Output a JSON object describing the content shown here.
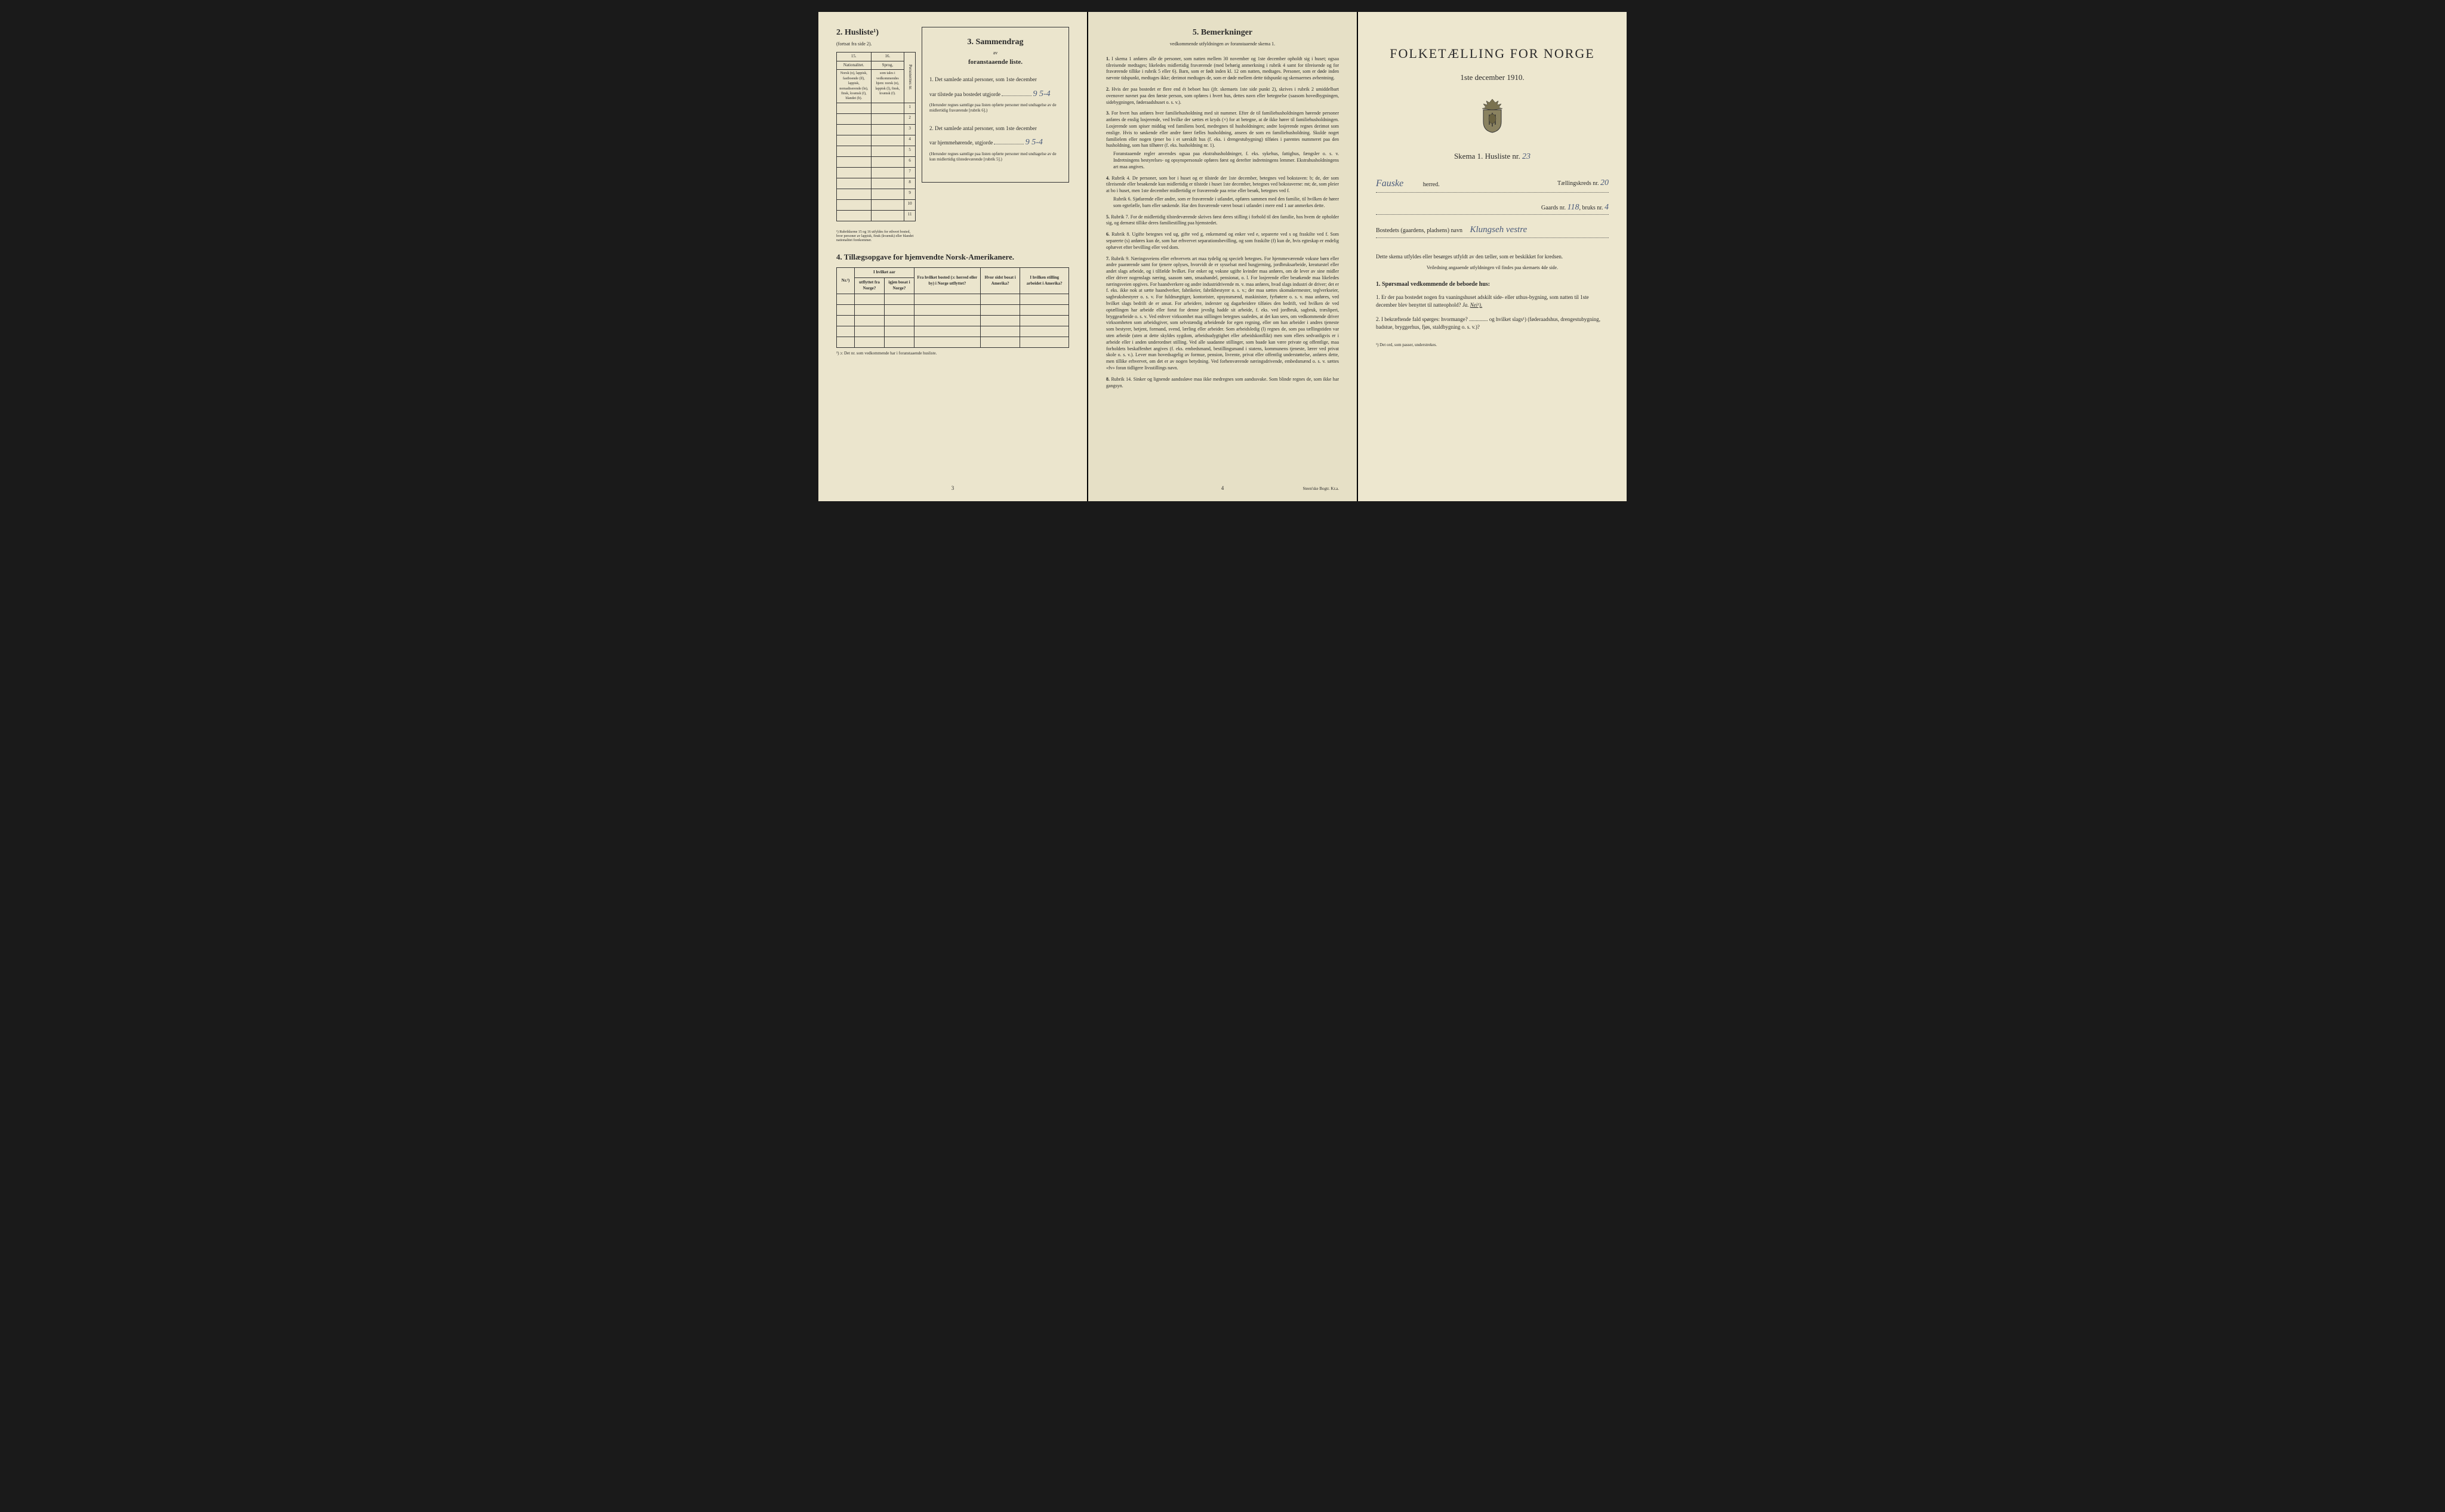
{
  "page3": {
    "husliste_header": "2. Husliste¹)",
    "husliste_sub": "(fortsat fra side 2).",
    "col15": "15.",
    "col16": "16.",
    "nationalitet_header": "Nationalitet.",
    "sprog_header": "Sprog,",
    "nat_text": "Norsk (n), lappisk, fastboende (lf), lappisk, nomadiserende (ln), finsk, kvænsk (f), blandet (b).",
    "sprog_text": "som tales i vedkommendes hjem: norsk (n), lappisk (l), finsk, kvænsk (f).",
    "person_nr": "Personernes nr.",
    "rows": [
      "1",
      "2",
      "3",
      "4",
      "5",
      "6",
      "7",
      "8",
      "9",
      "10",
      "11"
    ],
    "rubrik_note": "¹) Rubrikkerne 15 og 16 utfyldes for ethvert bosted, hvor personer av lappisk, finsk (kvænsk) eller blandet nationalitet forekommer.",
    "sammendrag_title": "3. Sammendrag",
    "sammendrag_av": "av",
    "sammendrag_sub": "foranstaaende liste.",
    "item1_text": "1. Det samlede antal personer, som 1ste december",
    "item1_var": "var tilstede paa bostedet utgjorde",
    "item1_value": "9 5-4",
    "item1_note": "(Herunder regnes samtlige paa listen opførte personer med undtagelse av de midlertidig fraværende [rubrik 6].)",
    "item2_text": "2. Det samlede antal personer, som 1ste december",
    "item2_var": "var hjemmehørende, utgjorde",
    "item2_value": "9 5-4",
    "item2_note": "(Herunder regnes samtlige paa listen opførte personer med undtagelse av de kun midlertidig tilstedeværende [rubrik 5].)",
    "tillaeg_title": "4. Tillægsopgave for hjemvendte Norsk-Amerikanere.",
    "tillaeg_headers": [
      "Nr.²)",
      "I hvilket aar",
      "Fra hvilket bosted (ɔ: herred eller by) i Norge utflyttet?",
      "Hvor sidst bosat i Amerika?",
      "I hvilken stilling arbeidet i Amerika?"
    ],
    "tillaeg_sub1": "utflyttet fra Norge?",
    "tillaeg_sub2": "igjen bosat i Norge?",
    "tillaeg_footnote": "²) ɔ: Det nr. som vedkommende har i foranstaaende husliste.",
    "page_num": "3"
  },
  "page4": {
    "title": "5. Bemerkninger",
    "subtitle": "vedkommende utfyldningen av foranstaaende skema 1.",
    "items": [
      {
        "num": "1.",
        "text": "I skema 1 anføres alle de personer, som natten mellem 30 november og 1ste december opholdt sig i huset; ogsaa tilreisende medtages; likeledes midlertidig fraværende (med behørig anmerkning i rubrik 4 samt for tilreisende og for fraværende tillike i rubrik 5 eller 6). Barn, som er født inden kl. 12 om natten, medtages. Personer, som er døde inden nævnte tidspunkt, medtages ikke; derimot medtages de, som er døde mellem dette tidspunkt og skemaernes avhentning."
      },
      {
        "num": "2.",
        "text": "Hvis der paa bostedet er flere end ét beboet hus (jfr. skemaets 1ste side punkt 2), skrives i rubrik 2 umiddelbart ovenover navnet paa den første person, som opføres i hvert hus, dettes navn eller betegnelse (saasom hovedbygningen, sidebygningen, føderaadshuset o. s. v.)."
      },
      {
        "num": "3.",
        "text": "For hvert hus anføres hver familiehusholdning med sit nummer. Efter de til familiehusholdningen hørende personer anføres de enslig losjerende, ved hvilke der sættes et kryds (×) for at betegne, at de ikke hører til familiehusholdningen. Losjerende som spiser middag ved familiens bord, medregnes til husholdningen; andre losjerende regnes derimot som enslige. Hvis to søskende eller andre fører fælles husholdning, ansees de som en familiehusholdning. Skulde noget familielem eller nogen tjener bo i et særskilt hus (f. eks. i drengestubygning) tilføies i parentes nummeret paa den husholdning, som han tilhører (f. eks. husholdning nr. 1).",
        "sub": "Foranstaaende regler anvendes ogsaa paa ekstrahusholdninger, f. eks. sykehus, fattighus, fængsler o. s. v. Indretningens bestyrelses- og opsynspersonale opføres først og derefter indretningens lemmer. Ekstrahusholdningens art maa angives."
      },
      {
        "num": "4.",
        "text": "Rubrik 4. De personer, som bor i huset og er tilstede der 1ste december, betegnes ved bokstaven: b; de, der som tilreisende eller besøkende kun midlertidig er tilstede i huset 1ste december, betegnes ved bokstaverne: mt; de, som pleier at bo i huset, men 1ste december midlertidig er fraværende paa reise eller besøk, betegnes ved f.",
        "sub": "Rubrik 6. Sjøfarende eller andre, som er fraværende i utlandet, opføres sammen med den familie, til hvilken de hører som egtefælle, barn eller søskende.\nHar den fraværende været bosat i utlandet i mere end 1 aar anmerkes dette."
      },
      {
        "num": "5.",
        "text": "Rubrik 7. For de midlertidig tilstedeværende skrives først deres stilling i forhold til den familie, hos hvem de opholder sig, og dernæst tillike deres familiestilling paa hjemstedet."
      },
      {
        "num": "6.",
        "text": "Rubrik 8. Ugifte betegnes ved ug, gifte ved g, enkemænd og enker ved e, separerte ved s og fraskilte ved f. Som separerte (s) anføres kun de, som har erhvervet separationsbevilling, og som fraskilte (f) kun de, hvis egteskap er endelig ophævet efter bevilling eller ved dom."
      },
      {
        "num": "7.",
        "text": "Rubrik 9. Næringsveiens eller erhvervets art maa tydelig og specielt betegnes.\nFor hjemmeværende voksne børn eller andre paarørende samt for tjenere oplyses, hvorvidt de er sysselsat med husgjerning, jordbruksarbeide, kreaturstel eller andet slags arbeide, og i tilfælde hvilket. For enker og voksne ugifte kvinder maa anføres, om de lever av sine midler eller driver nogenslags næring, saasom søm, smaahandel, pensionat, o. l.\nFor losjerende eller besøkende maa likeledes næringsveien opgives.\nFor haandverkere og andre industridrivende m. v. maa anføres, hvad slags industri de driver; det er f. eks. ikke nok at sætte haandverker, fabrikeier, fabrikbestyrer o. s. v.; der maa sættes skomakermester, teglverkseier, sagbruksbestyrer o. s. v.\nFor fuldmægtiger, kontorister, opsynsmænd, maskinister, fyrbøtere o. s. v. maa anføres, ved hvilket slags bedrift de er ansat.\nFor arbeidere, inderster og dagarbeidere tilføies den bedrift, ved hvilken de ved optællingen har arbeide eller forut for denne jevnlig hadde sit arbeide, f. eks. ved jordbruk, sagbruk, træsliperi, bryggearbeide o. s. v.\nVed enhver virksomhet maa stillingen betegnes saaledes, at det kan sees, om vedkommende driver virksomheten som arbeidsgiver, som selvstændig arbeidende for egen regning, eller om han arbeider i andres tjeneste som bestyrer, betjent, formand, svend, lærling eller arbeider.\nSom arbeidsledig (l) regnes de, som paa tællingstiden var uten arbeide (uten at dette skyldes sygdom, arbeidsudygtighet eller arbeidskonflikt) men som ellers sedvanligvis er i arbeide eller i anden underordnet stilling.\nVed alle saadanne stillinger, som baade kan være private og offentlige, maa forholdets beskaffenhet angives (f. eks. embedsmand, bestillingsmand i statens, kommunens tjeneste, lærer ved privat skole o. s. v.).\nLever man hovedsagelig av formue, pension, livrente, privat eller offentlig understøttelse, anføres dette, men tillike erhvervet, om det er av nogen betydning.\nVed forhenværende næringsdrivende, embedsmænd o. s. v. sættes «fv» foran tidligere livsstillings navn."
      },
      {
        "num": "8.",
        "text": "Rubrik 14. Sinker og lignende aandssløve maa ikke medregnes som aandssvake.\nSom blinde regnes de, som ikke har gangsyn."
      }
    ],
    "page_num": "4",
    "printer": "Steen'ske Bogtr. Kr.a."
  },
  "page1": {
    "main_title": "FOLKETÆLLING FOR NORGE",
    "date": "1ste december 1910.",
    "skema_text": "Skema 1. Husliste nr.",
    "husliste_nr": "23",
    "herred_label": "herred.",
    "herred_value": "Fauske",
    "taellingskreds_label": "Tællingskreds nr.",
    "taellingskreds_value": "20",
    "gaards_label": "Gaards nr.",
    "gaards_value": "118",
    "bruks_label": "bruks nr.",
    "bruks_value": "4",
    "bosted_label": "Bostedets (gaardens, pladsens) navn",
    "bosted_value": "Klungseh vestre",
    "instruction": "Dette skema utfyldes eller besørges utfyldt av den tæller, som er beskikket for kredsen.",
    "instruction_sub": "Veiledning angaaende utfyldningen vil findes paa skemaets 4de side.",
    "q_title": "1. Spørsmaal vedkommende de beboede hus:",
    "q1": "1. Er der paa bostedet nogen fra vaaningshuset adskilt side- eller uthus-bygning, som natten til 1ste december blev benyttet til natteophold?",
    "q1_ja": "Ja.",
    "q1_nei": "Nei¹).",
    "q2": "2. I bekræftende fald spørges: hvormange? .............. og hvilket slags¹) (føderaadshus, drengestubygning, badstue, bryggerhus, fjøs, staldbygning o. s. v.)?",
    "footnote": "¹) Det ord, som passer, understrekes."
  },
  "colors": {
    "paper": "#e8e2c8",
    "ink": "#2a2a2a",
    "handwriting": "#4a5a7a"
  }
}
